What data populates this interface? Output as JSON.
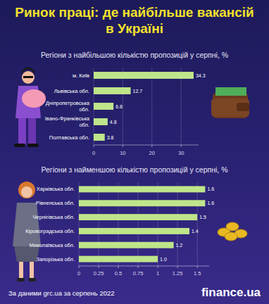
{
  "header": {
    "title": [
      "Ринок праці: де найбільше вакансій",
      "в Україні"
    ]
  },
  "chart_data": [
    {
      "type": "bar",
      "orientation": "horizontal",
      "title": "Регіони з найбільшою кількістю пропозицій  у серпні, %",
      "categories": [
        "м. Київ",
        "Львівська обл.",
        "Дніпропетровська обл.",
        "Івано-Франківська обл.",
        "Полтавська обл."
      ],
      "values": [
        34.3,
        12.7,
        6.8,
        4.8,
        3.8
      ],
      "color": "#bfe58a",
      "xlim": [
        0,
        36
      ],
      "xticks": [
        0,
        10,
        20,
        30
      ],
      "grid": true,
      "data_labels": true
    },
    {
      "type": "bar",
      "orientation": "horizontal",
      "title": "Регіони з найменшою кількістю пропозицій  у серпні, %",
      "categories": [
        "Харківська обл.",
        "Рівненська обл.",
        "Чернігівська обл.",
        "Кіровоградська обл.",
        "Миколаївська обл.",
        "Запорізька обл."
      ],
      "values": [
        1.6,
        1.6,
        1.5,
        1.4,
        1.2,
        1.0
      ],
      "value_labels": [
        "1.6",
        "1.6",
        "1.5",
        "1.4",
        "1.2",
        "1.0"
      ],
      "color": "#bfe58a",
      "xlim": [
        0,
        1.65
      ],
      "xticks": [
        0,
        0.25,
        0.5,
        0.75,
        1,
        1.25,
        1.5
      ],
      "grid": true,
      "data_labels": true
    }
  ],
  "footer": {
    "source": "За даними grc.ua за серпень 2022",
    "logo": "finance.ua"
  }
}
